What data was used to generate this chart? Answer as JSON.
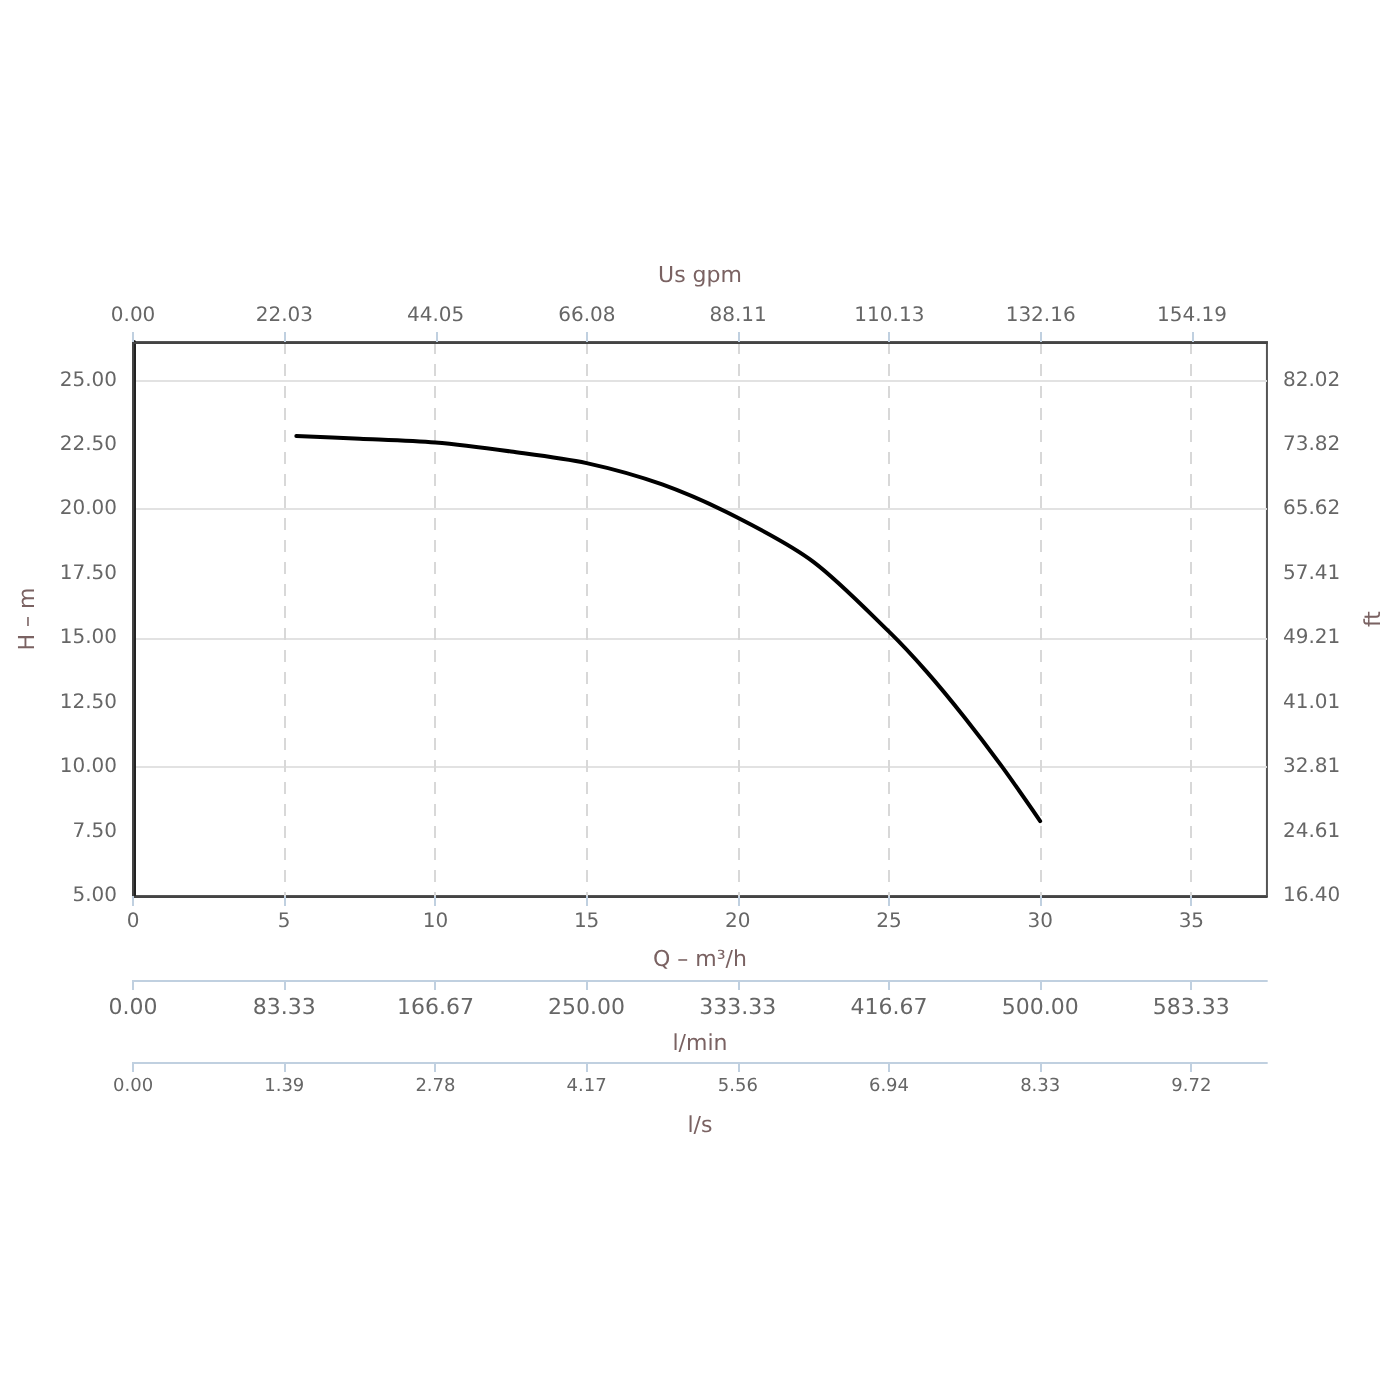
{
  "chart_data": {
    "type": "line",
    "xlabel": "Q – m³/h",
    "ylabel": "H – m",
    "y2label": "ft",
    "x2label": "Us gpm",
    "xlim": [
      0,
      37.5
    ],
    "xticks": [
      0,
      5,
      10,
      15,
      20,
      25,
      30,
      35
    ],
    "x2lim": [
      0,
      165.11
    ],
    "x2ticks": [
      {
        "value": 0,
        "label": "0.00"
      },
      22.03,
      44.05,
      66.08,
      88.11,
      110.13,
      132.16,
      154.19
    ],
    "annotations": [
      "0.00",
      "83.33",
      "166.67",
      "250.00",
      "333.33",
      "416.67",
      "500.00",
      "583.33",
      "l/min",
      "0.00",
      "1.39",
      "2.78",
      "4.17",
      "5.56",
      "6.94",
      "8.33",
      "9.72",
      "l/s"
    ],
    "ylim": [
      5,
      26.5
    ],
    "yticks": [
      {
        "value": 5,
        "label": "5.00"
      },
      {
        "value": 7.5,
        "label": "7.50"
      },
      {
        "value": 10,
        "label": "10.00"
      },
      {
        "value": 12.5,
        "label": "12.50"
      },
      {
        "value": 15,
        "label": "15.00"
      },
      {
        "value": 17.5,
        "label": "17.50"
      },
      {
        "value": 20,
        "label": "20.00"
      },
      {
        "value": 22.5,
        "label": "22.50"
      },
      {
        "value": 25,
        "label": "25.00"
      }
    ],
    "y2lim": [
      16.4,
      86.94
    ],
    "y2ticks": [
      {
        "value": 16.4,
        "label": "16.40"
      },
      24.61,
      32.81,
      41.01,
      49.21,
      57.41,
      65.62,
      73.82,
      82.02
    ],
    "grid": true,
    "marker": "none",
    "line_style": "solid",
    "series": [
      {
        "color": "#000000",
        "x": [
          5.4,
          7.5,
          10,
          12.5,
          15,
          17.5,
          20,
          22.5,
          25,
          26.25,
          27.5,
          28.75,
          30
        ],
        "values": [
          22.85,
          22.75,
          22.6,
          22.25,
          21.8,
          20.97,
          19.68,
          17.97,
          15.26,
          13.7,
          11.93,
          10,
          7.91
        ]
      }
    ]
  }
}
